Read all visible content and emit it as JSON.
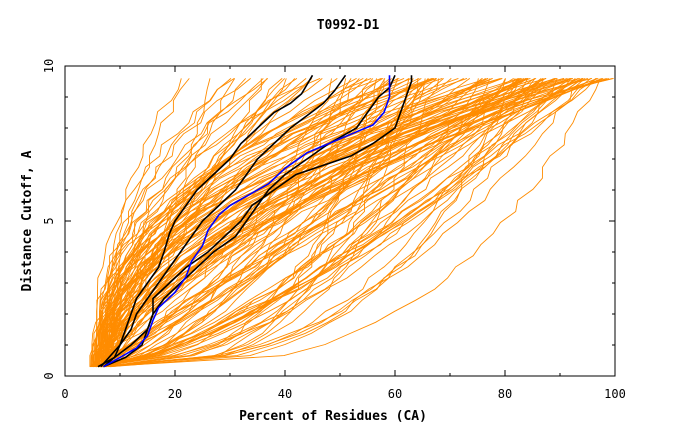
{
  "chart_data": {
    "type": "line",
    "title": "T0992-D1",
    "xlabel": "Percent of Residues (CA)",
    "ylabel": "Distance Cutoff, A",
    "xlim": [
      0,
      100
    ],
    "ylim": [
      0,
      10
    ],
    "x_ticks": [
      "0",
      "20",
      "40",
      "60",
      "80",
      "100"
    ],
    "y_ticks": [
      "0",
      "5",
      "10"
    ],
    "colors": {
      "background_series": "#ff8c00",
      "highlight_black": "#000000",
      "highlight_blue": "#0000ff"
    },
    "background_series_count": 150,
    "highlight_series": [
      {
        "color": "#000000",
        "points": [
          [
            6.5,
            0.3
          ],
          [
            8,
            0.6
          ],
          [
            10,
            1.0
          ],
          [
            11,
            1.5
          ],
          [
            12,
            2.0
          ],
          [
            13,
            2.5
          ],
          [
            15,
            3.0
          ],
          [
            17,
            3.5
          ],
          [
            18,
            4.0
          ],
          [
            19,
            4.6
          ],
          [
            20,
            5.0
          ],
          [
            22,
            5.5
          ],
          [
            24,
            6.0
          ],
          [
            27,
            6.5
          ],
          [
            30,
            7.0
          ],
          [
            32,
            7.5
          ],
          [
            35,
            8.0
          ],
          [
            38,
            8.5
          ],
          [
            41,
            8.8
          ],
          [
            43,
            9.1
          ],
          [
            44,
            9.4
          ],
          [
            45,
            9.7
          ]
        ]
      },
      {
        "color": "#000000",
        "points": [
          [
            7,
            0.3
          ],
          [
            9,
            0.6
          ],
          [
            10,
            1.0
          ],
          [
            12,
            1.5
          ],
          [
            13,
            2.0
          ],
          [
            15,
            2.5
          ],
          [
            17,
            3.0
          ],
          [
            19,
            3.5
          ],
          [
            21,
            4.0
          ],
          [
            23,
            4.5
          ],
          [
            25,
            5.0
          ],
          [
            28,
            5.5
          ],
          [
            31,
            6.0
          ],
          [
            33,
            6.5
          ],
          [
            35,
            7.0
          ],
          [
            38,
            7.5
          ],
          [
            41,
            8.0
          ],
          [
            44,
            8.4
          ],
          [
            47,
            8.8
          ],
          [
            49,
            9.2
          ],
          [
            51,
            9.7
          ]
        ]
      },
      {
        "color": "#000000",
        "points": [
          [
            6,
            0.3
          ],
          [
            9,
            0.6
          ],
          [
            12,
            1.0
          ],
          [
            15,
            1.5
          ],
          [
            16,
            2.0
          ],
          [
            16,
            2.5
          ],
          [
            19,
            3.0
          ],
          [
            22,
            3.5
          ],
          [
            26,
            4.0
          ],
          [
            29,
            4.5
          ],
          [
            32,
            5.0
          ],
          [
            34,
            5.5
          ],
          [
            38,
            6.0
          ],
          [
            42,
            6.5
          ],
          [
            47,
            6.8
          ],
          [
            52,
            7.1
          ],
          [
            56,
            7.5
          ],
          [
            60,
            8.0
          ],
          [
            61,
            8.5
          ],
          [
            62,
            9.0
          ],
          [
            63,
            9.5
          ],
          [
            63,
            9.7
          ]
        ]
      },
      {
        "color": "#000000",
        "points": [
          [
            7,
            0.3
          ],
          [
            11,
            0.6
          ],
          [
            14,
            1.0
          ],
          [
            15,
            1.5
          ],
          [
            16,
            2.0
          ],
          [
            18,
            2.5
          ],
          [
            21,
            3.0
          ],
          [
            24,
            3.5
          ],
          [
            27,
            4.0
          ],
          [
            31,
            4.5
          ],
          [
            33,
            5.0
          ],
          [
            35,
            5.5
          ],
          [
            37,
            6.0
          ],
          [
            40,
            6.5
          ],
          [
            44,
            7.0
          ],
          [
            48,
            7.5
          ],
          [
            53,
            8.0
          ],
          [
            55,
            8.5
          ],
          [
            57,
            9.0
          ],
          [
            59,
            9.3
          ],
          [
            60,
            9.7
          ]
        ]
      },
      {
        "color": "#0000ff",
        "points": [
          [
            7,
            0.3
          ],
          [
            10,
            0.6
          ],
          [
            13,
            0.9
          ],
          [
            15,
            1.3
          ],
          [
            16,
            1.8
          ],
          [
            17,
            2.2
          ],
          [
            20,
            2.7
          ],
          [
            22,
            3.2
          ],
          [
            23,
            3.7
          ],
          [
            25,
            4.2
          ],
          [
            26,
            4.7
          ],
          [
            28,
            5.2
          ],
          [
            30,
            5.5
          ],
          [
            34,
            5.9
          ],
          [
            37,
            6.2
          ],
          [
            40,
            6.7
          ],
          [
            44,
            7.2
          ],
          [
            48,
            7.5
          ],
          [
            52,
            7.8
          ],
          [
            56,
            8.1
          ],
          [
            58,
            8.5
          ],
          [
            59,
            9.0
          ],
          [
            59,
            9.7
          ]
        ]
      }
    ]
  }
}
